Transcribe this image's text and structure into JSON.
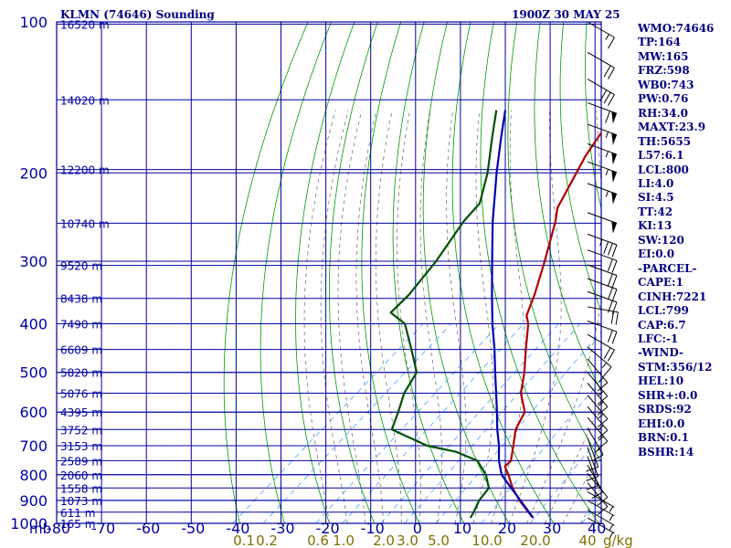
{
  "header": {
    "station": "KLMN (74646) Sounding",
    "time": "1900Z 30 MAY 25"
  },
  "indices": [
    "WMO:74646",
    "TP:164",
    "MW:165",
    "FRZ:598",
    "WB0:743",
    "PW:0.76",
    "RH:34.0",
    "MAXT:23.9",
    "TH:5655",
    "L57:6.1",
    "LCL:800",
    "LI:4.0",
    "SI:4.5",
    "TT:42",
    "KI:13",
    "SW:120",
    "EI:0.0",
    "-PARCEL-",
    "CAPE:1",
    "CINH:7221",
    "LCL:799",
    "CAP:6.7",
    "LFC:-1",
    "-WIND-",
    "STM:356/12",
    "HEL:10",
    "SHR+:0.0",
    "SRDS:92",
    "EHI:0.0",
    "BRN:0.1",
    "BSHR:14"
  ],
  "colors": {
    "frame": "#0000a0",
    "dry_adiabat": "#009a00",
    "moist_adiabat": "#c8c8c8",
    "mixing_ratio": "#4aa0ff",
    "temperature": "#b00000",
    "dewpoint": "#005000",
    "parcel": "#0000b0",
    "wind": "#000000"
  },
  "chart_data": {
    "type": "skew-t",
    "xlabel": "",
    "ylabel": "mb",
    "x_axis_unit": "°C",
    "x_ticks": [
      -80,
      -70,
      -60,
      -50,
      -40,
      -30,
      -20,
      -10,
      0,
      10,
      20,
      30,
      40
    ],
    "x_tick_labels": [
      "-80",
      "-70",
      "-60",
      "-50",
      "-40",
      "-30",
      "-20",
      "-10",
      "0",
      "10",
      "20",
      "30",
      "40"
    ],
    "xlim": [
      -80,
      40
    ],
    "pressure_labels": [
      100,
      200,
      300,
      400,
      500,
      600,
      700,
      800,
      900,
      1000
    ],
    "ylim": [
      100,
      1000
    ],
    "y_scale": "log",
    "height_levels": [
      {
        "p": 101,
        "label": "16520 m"
      },
      {
        "p": 143,
        "label": "14020 m"
      },
      {
        "p": 197,
        "label": "12200 m"
      },
      {
        "p": 252,
        "label": "10740 m"
      },
      {
        "p": 306,
        "label": "9520 m"
      },
      {
        "p": 356,
        "label": "8438 m"
      },
      {
        "p": 400,
        "label": "7490 m"
      },
      {
        "p": 450,
        "label": "6609 m"
      },
      {
        "p": 500,
        "label": "5820 m"
      },
      {
        "p": 550,
        "label": "5076 m"
      },
      {
        "p": 600,
        "label": "4395 m"
      },
      {
        "p": 650,
        "label": "3752 m"
      },
      {
        "p": 700,
        "label": "3153 m"
      },
      {
        "p": 750,
        "label": "2589 m"
      },
      {
        "p": 800,
        "label": "2060 m"
      },
      {
        "p": 850,
        "label": "1558 m"
      },
      {
        "p": 900,
        "label": "1073 m"
      },
      {
        "p": 950,
        "label": "611 m"
      },
      {
        "p": 1000,
        "label": "165 m"
      }
    ],
    "mixing_ratio_labels": [
      {
        "w": 0.1,
        "label": "0.1"
      },
      {
        "w": 0.2,
        "label": "0.2"
      },
      {
        "w": 0.6,
        "label": "0.6"
      },
      {
        "w": 1.0,
        "label": "1.0"
      },
      {
        "w": 2.0,
        "label": "2.0"
      },
      {
        "w": 3.0,
        "label": "3.0"
      },
      {
        "w": 5.0,
        "label": "5.0"
      },
      {
        "w": 10.0,
        "label": "10.0"
      },
      {
        "w": 20.0,
        "label": "20.0"
      },
      {
        "w": 40.0,
        "label": "40"
      }
    ],
    "mixing_ratio_unit": "g/kg",
    "series": [
      {
        "name": "Temperature",
        "points": [
          {
            "p": 975,
            "t": 24.0
          },
          {
            "p": 950,
            "t": 21.5
          },
          {
            "p": 900,
            "t": 16.5
          },
          {
            "p": 850,
            "t": 11.8
          },
          {
            "p": 800,
            "t": 7.5
          },
          {
            "p": 770,
            "t": 4.6
          },
          {
            "p": 750,
            "t": 4.5
          },
          {
            "p": 700,
            "t": 1.2
          },
          {
            "p": 650,
            "t": -2.4
          },
          {
            "p": 600,
            "t": -4.8
          },
          {
            "p": 580,
            "t": -7.0
          },
          {
            "p": 550,
            "t": -10.5
          },
          {
            "p": 500,
            "t": -15.0
          },
          {
            "p": 450,
            "t": -20.5
          },
          {
            "p": 400,
            "t": -26.5
          },
          {
            "p": 385,
            "t": -29.0
          },
          {
            "p": 350,
            "t": -32.5
          },
          {
            "p": 300,
            "t": -38.8
          },
          {
            "p": 250,
            "t": -46.5
          },
          {
            "p": 235,
            "t": -49.5
          },
          {
            "p": 200,
            "t": -54.2
          },
          {
            "p": 185,
            "t": -56.5
          },
          {
            "p": 164,
            "t": -59.2
          },
          {
            "p": 145,
            "t": -60.5
          },
          {
            "p": 120,
            "t": -61.8
          },
          {
            "p": 110,
            "t": -63.5
          },
          {
            "p": 100,
            "t": -63.5
          }
        ]
      },
      {
        "name": "Dewpoint",
        "points": [
          {
            "p": 975,
            "t": 10.0
          },
          {
            "p": 950,
            "t": 9.3
          },
          {
            "p": 900,
            "t": 7.5
          },
          {
            "p": 850,
            "t": 6.5
          },
          {
            "p": 800,
            "t": 2.5
          },
          {
            "p": 750,
            "t": -3.0
          },
          {
            "p": 720,
            "t": -10.0
          },
          {
            "p": 700,
            "t": -18.0
          },
          {
            "p": 650,
            "t": -30.0
          },
          {
            "p": 600,
            "t": -33.0
          },
          {
            "p": 550,
            "t": -36.5
          },
          {
            "p": 500,
            "t": -39.0
          },
          {
            "p": 450,
            "t": -46.0
          },
          {
            "p": 400,
            "t": -54.0
          },
          {
            "p": 380,
            "t": -60.0
          },
          {
            "p": 350,
            "t": -60.5
          },
          {
            "p": 300,
            "t": -63.0
          },
          {
            "p": 250,
            "t": -67.0
          },
          {
            "p": 230,
            "t": -68.0
          },
          {
            "p": 200,
            "t": -74.0
          },
          {
            "p": 170,
            "t": -82.0
          },
          {
            "p": 150,
            "t": -88.0
          }
        ]
      },
      {
        "name": "Parcel",
        "points": [
          {
            "p": 975,
            "t": 24.0
          },
          {
            "p": 900,
            "t": 16.7
          },
          {
            "p": 850,
            "t": 11.5
          },
          {
            "p": 800,
            "t": 6.0
          },
          {
            "p": 750,
            "t": 1.8
          },
          {
            "p": 700,
            "t": -2.0
          },
          {
            "p": 650,
            "t": -6.5
          },
          {
            "p": 600,
            "t": -11.0
          },
          {
            "p": 550,
            "t": -16.0
          },
          {
            "p": 500,
            "t": -21.5
          },
          {
            "p": 450,
            "t": -27.5
          },
          {
            "p": 400,
            "t": -34.5
          },
          {
            "p": 350,
            "t": -42.0
          },
          {
            "p": 300,
            "t": -50.5
          },
          {
            "p": 250,
            "t": -60.5
          },
          {
            "p": 200,
            "t": -72.0
          },
          {
            "p": 170,
            "t": -80.0
          },
          {
            "p": 150,
            "t": -86.0
          }
        ]
      }
    ],
    "wind_barbs": [
      {
        "p": 100,
        "dir": 300,
        "kt": 15
      },
      {
        "p": 115,
        "dir": 300,
        "kt": 20
      },
      {
        "p": 130,
        "dir": 300,
        "kt": 30
      },
      {
        "p": 145,
        "dir": 290,
        "kt": 60
      },
      {
        "p": 160,
        "dir": 290,
        "kt": 55
      },
      {
        "p": 175,
        "dir": 290,
        "kt": 55
      },
      {
        "p": 190,
        "dir": 290,
        "kt": 55
      },
      {
        "p": 210,
        "dir": 290,
        "kt": 55
      },
      {
        "p": 240,
        "dir": 290,
        "kt": 50
      },
      {
        "p": 265,
        "dir": 290,
        "kt": 35
      },
      {
        "p": 285,
        "dir": 290,
        "kt": 20
      },
      {
        "p": 305,
        "dir": 290,
        "kt": 20
      },
      {
        "p": 325,
        "dir": 290,
        "kt": 20
      },
      {
        "p": 345,
        "dir": 290,
        "kt": 20
      },
      {
        "p": 370,
        "dir": 280,
        "kt": 20
      },
      {
        "p": 395,
        "dir": 290,
        "kt": 20
      },
      {
        "p": 420,
        "dir": 300,
        "kt": 20
      },
      {
        "p": 445,
        "dir": 310,
        "kt": 15
      },
      {
        "p": 470,
        "dir": 320,
        "kt": 15
      },
      {
        "p": 500,
        "dir": 320,
        "kt": 15
      },
      {
        "p": 525,
        "dir": 320,
        "kt": 15
      },
      {
        "p": 555,
        "dir": 320,
        "kt": 15
      },
      {
        "p": 585,
        "dir": 320,
        "kt": 15
      },
      {
        "p": 615,
        "dir": 320,
        "kt": 15
      },
      {
        "p": 645,
        "dir": 330,
        "kt": 15
      },
      {
        "p": 675,
        "dir": 340,
        "kt": 10
      },
      {
        "p": 705,
        "dir": 340,
        "kt": 10
      },
      {
        "p": 735,
        "dir": 340,
        "kt": 10
      },
      {
        "p": 765,
        "dir": 330,
        "kt": 10
      },
      {
        "p": 795,
        "dir": 320,
        "kt": 10
      },
      {
        "p": 830,
        "dir": 320,
        "kt": 10
      },
      {
        "p": 865,
        "dir": 300,
        "kt": 5
      },
      {
        "p": 900,
        "dir": 300,
        "kt": 5
      },
      {
        "p": 940,
        "dir": 300,
        "kt": 5
      },
      {
        "p": 975,
        "dir": 300,
        "kt": 5
      }
    ]
  }
}
